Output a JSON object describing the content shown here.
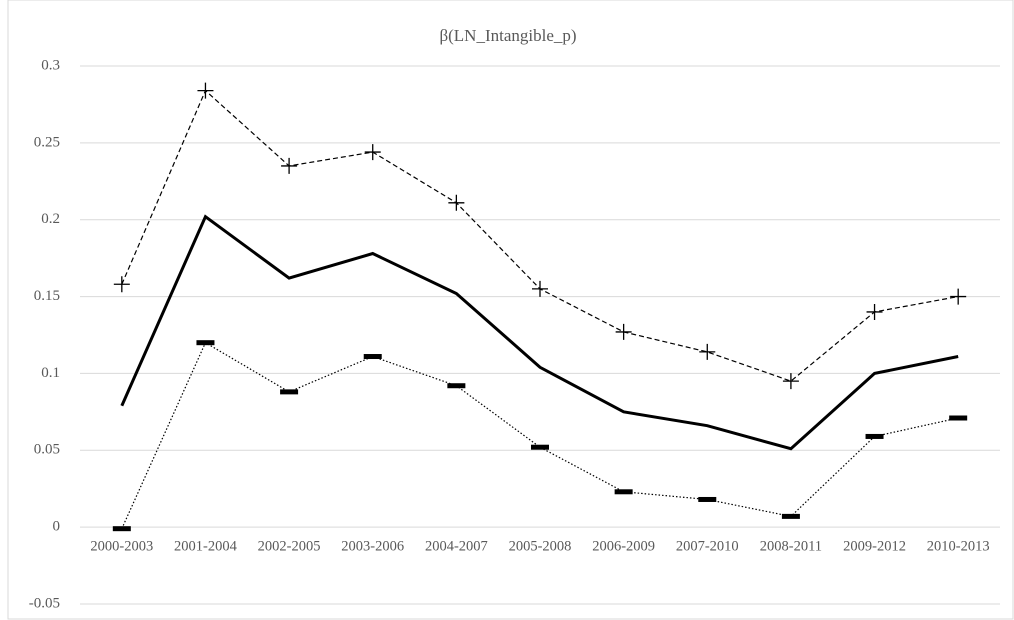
{
  "chart_data": {
    "type": "line",
    "title": "β(LN_Intangible_p)",
    "categories": [
      "2000-2003",
      "2001-2004",
      "2002-2005",
      "2003-2006",
      "2004-2007",
      "2005-2008",
      "2006-2009",
      "2007-2010",
      "2008-2011",
      "2009-2012",
      "2010-2013"
    ],
    "series": [
      {
        "color": "#000000",
        "line_style": "dashed",
        "marker": "plus",
        "values": [
          0.158,
          0.284,
          0.235,
          0.244,
          0.211,
          0.155,
          0.127,
          0.114,
          0.095,
          0.14,
          0.15
        ]
      },
      {
        "color": "#000000",
        "line_style": "solid",
        "marker": "none",
        "values": [
          0.079,
          0.202,
          0.162,
          0.178,
          0.152,
          0.104,
          0.075,
          0.066,
          0.051,
          0.1,
          0.111
        ]
      },
      {
        "color": "#000000",
        "line_style": "dotted",
        "marker": "dash",
        "values": [
          -0.001,
          0.12,
          0.088,
          0.111,
          0.092,
          0.052,
          0.023,
          0.018,
          0.007,
          0.059,
          0.071
        ]
      }
    ],
    "ylim": [
      -0.05,
      0.3
    ],
    "yticks": [
      -0.05,
      0,
      0.05,
      0.1,
      0.15,
      0.2,
      0.25,
      0.3
    ],
    "grid": true
  }
}
